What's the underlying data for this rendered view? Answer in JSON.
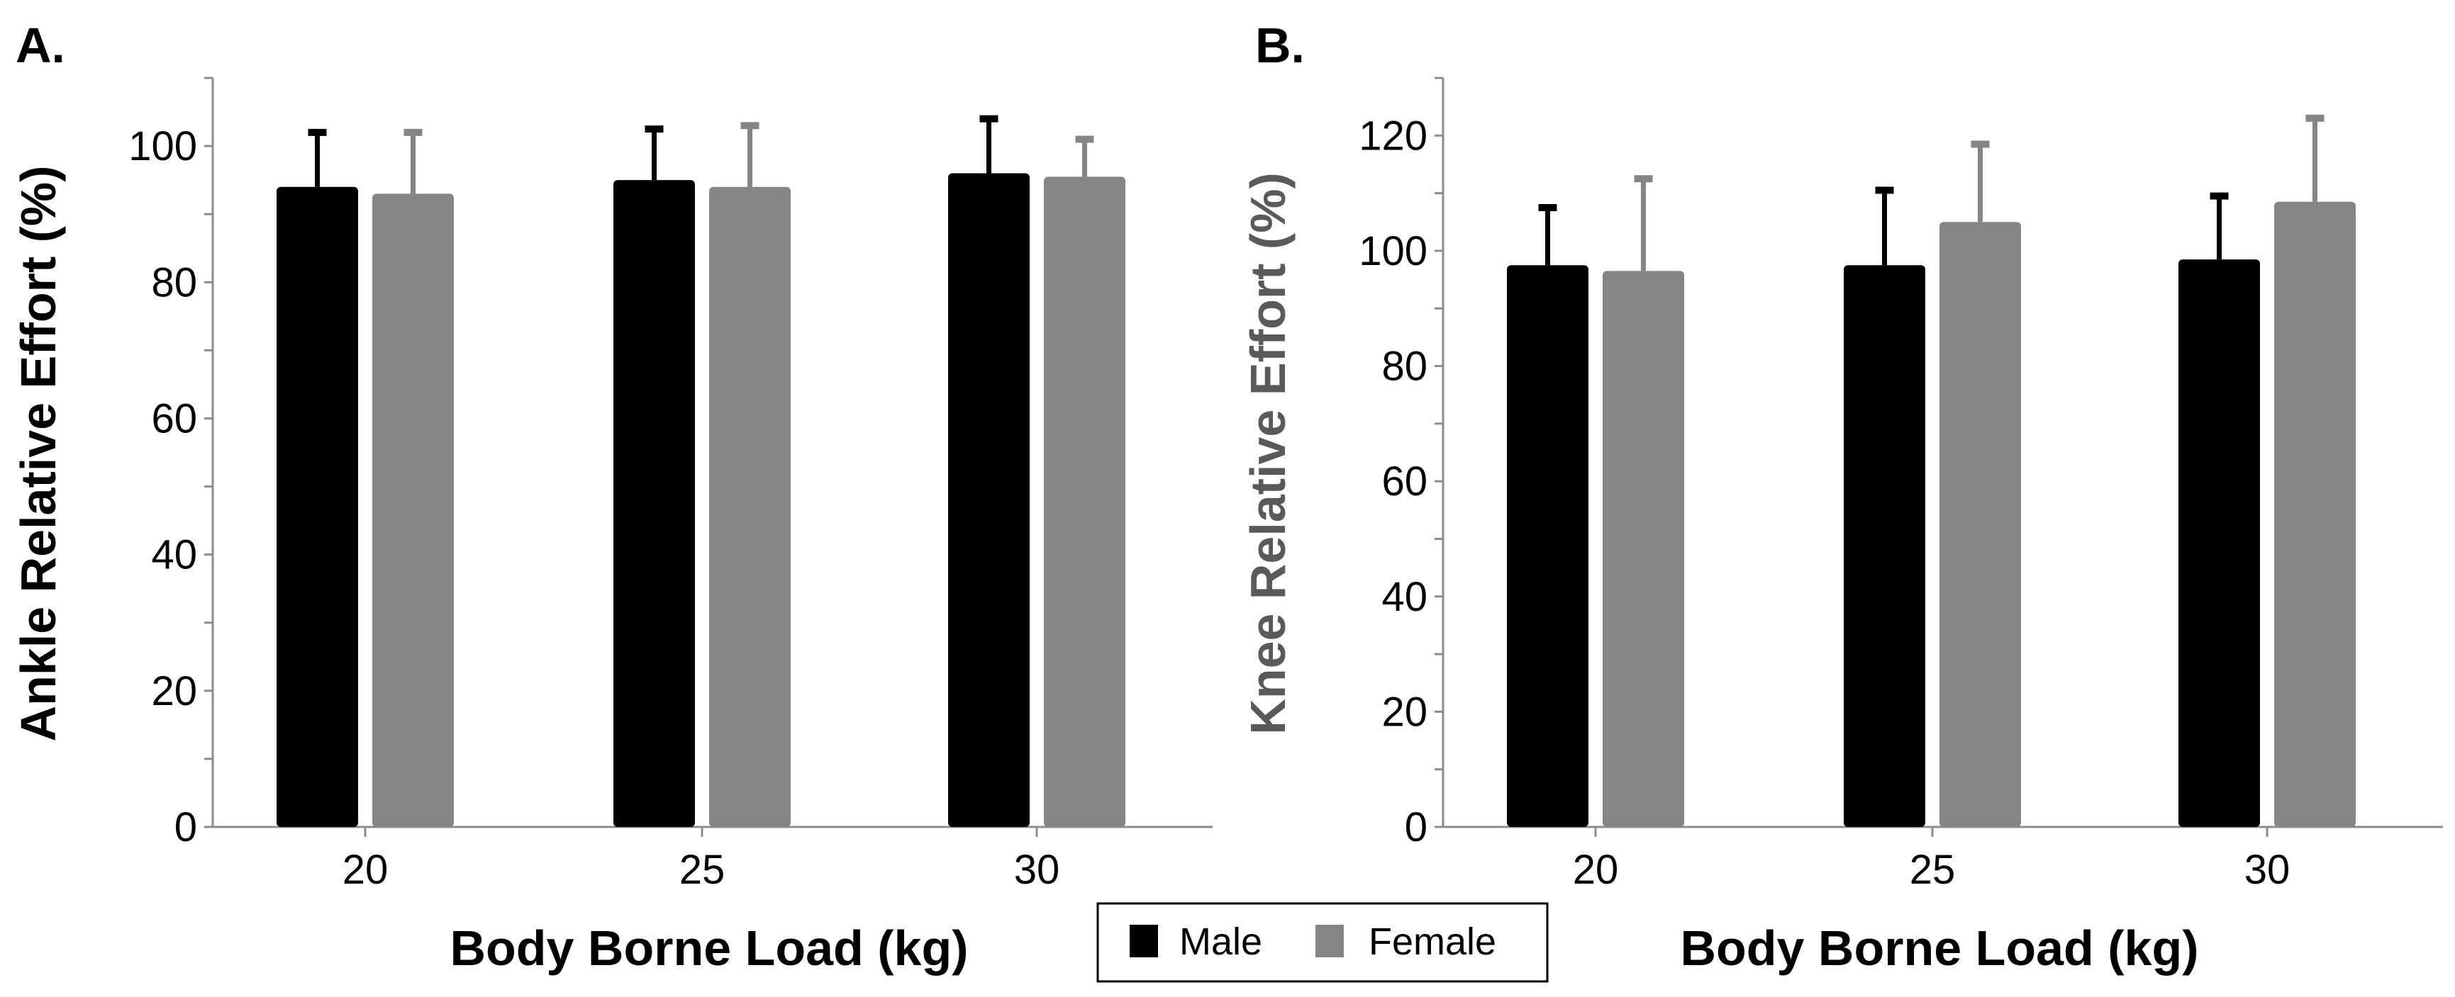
{
  "colors": {
    "male": "#000000",
    "female": "#858588",
    "axis": "#8c8c8c"
  },
  "legend": {
    "items": [
      "Male",
      "Female"
    ]
  },
  "chart_data": [
    {
      "type": "bar",
      "panel": "A.",
      "categories": [
        "20",
        "25",
        "30"
      ],
      "series": [
        {
          "name": "Male",
          "values": [
            94,
            95,
            96
          ],
          "errors": [
            8,
            7.5,
            8
          ]
        },
        {
          "name": "Female",
          "values": [
            93,
            94,
            95.5
          ],
          "errors": [
            9,
            9,
            5.5
          ]
        }
      ],
      "xlabel": "Body Borne Load (kg)",
      "ylabel": "Ankle Relative Effort (%)",
      "ylim": [
        0,
        110
      ],
      "yticks": [
        0,
        20,
        40,
        60,
        80,
        100
      ],
      "ytick_labels": [
        "0",
        "20",
        "40",
        "60",
        "80",
        "100"
      ]
    },
    {
      "type": "bar",
      "panel": "B.",
      "categories": [
        "20",
        "25",
        "30"
      ],
      "series": [
        {
          "name": "Male",
          "values": [
            97.5,
            97.5,
            98.5
          ],
          "errors": [
            10,
            13,
            11
          ]
        },
        {
          "name": "Female",
          "values": [
            96.5,
            105,
            108.5
          ],
          "errors": [
            16,
            13.5,
            14.5
          ]
        }
      ],
      "xlabel": "Body Borne Load (kg)",
      "ylabel": "Knee Relative Effort (%)",
      "ylim": [
        0,
        130
      ],
      "yticks": [
        0,
        20,
        40,
        60,
        80,
        100,
        120
      ],
      "ytick_labels": [
        "0",
        "20",
        "40",
        "60",
        "80",
        "100",
        "120"
      ]
    }
  ]
}
